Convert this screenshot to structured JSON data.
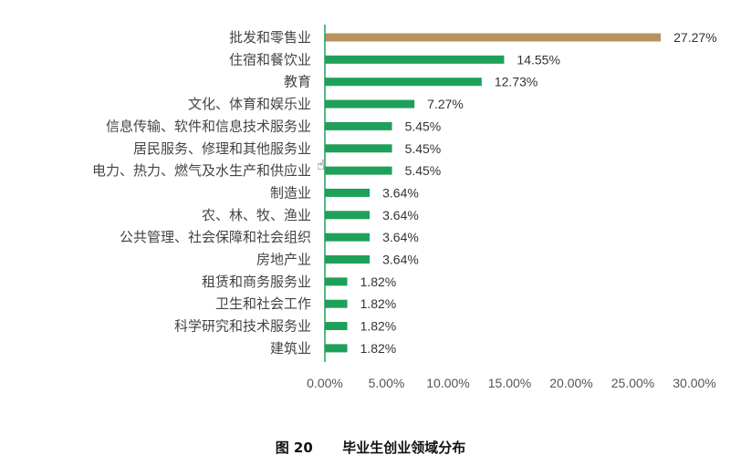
{
  "chart_data": {
    "type": "bar",
    "orientation": "horizontal",
    "categories": [
      "批发和零售业",
      "住宿和餐饮业",
      "教育",
      "文化、体育和娱乐业",
      "信息传输、软件和信息技术服务业",
      "居民服务、修理和其他服务业",
      "电力、热力、燃气及水生产和供应业",
      "制造业",
      "农、林、牧、渔业",
      "公共管理、社会保障和社会组织",
      "房地产业",
      "租赁和商务服务业",
      "卫生和社会工作",
      "科学研究和技术服务业",
      "建筑业"
    ],
    "values": [
      27.27,
      14.55,
      12.73,
      7.27,
      5.45,
      5.45,
      5.45,
      3.64,
      3.64,
      3.64,
      3.64,
      1.82,
      1.82,
      1.82,
      1.82
    ],
    "value_labels": [
      "27.27%",
      "14.55%",
      "12.73%",
      "7.27%",
      "5.45%",
      "5.45%",
      "5.45%",
      "3.64%",
      "3.64%",
      "3.64%",
      "3.64%",
      "1.82%",
      "1.82%",
      "1.82%",
      "1.82%"
    ],
    "xlim": [
      0,
      30
    ],
    "xticks": [
      0,
      5,
      10,
      15,
      20,
      25,
      30
    ],
    "xtick_labels": [
      "0.00%",
      "5.00%",
      "10.00%",
      "15.00%",
      "20.00%",
      "25.00%",
      "30.00%"
    ],
    "grid": false,
    "legend": "none",
    "colors": {
      "highlight_bar": "#B8925E",
      "bar": "#1FA05A",
      "axis": "#1FA05A"
    },
    "highlight_index": 0
  },
  "caption": {
    "figure_no": "图 20",
    "title": "毕业生创业领域分布"
  },
  "cursor_icon": "hand-pointer-icon"
}
